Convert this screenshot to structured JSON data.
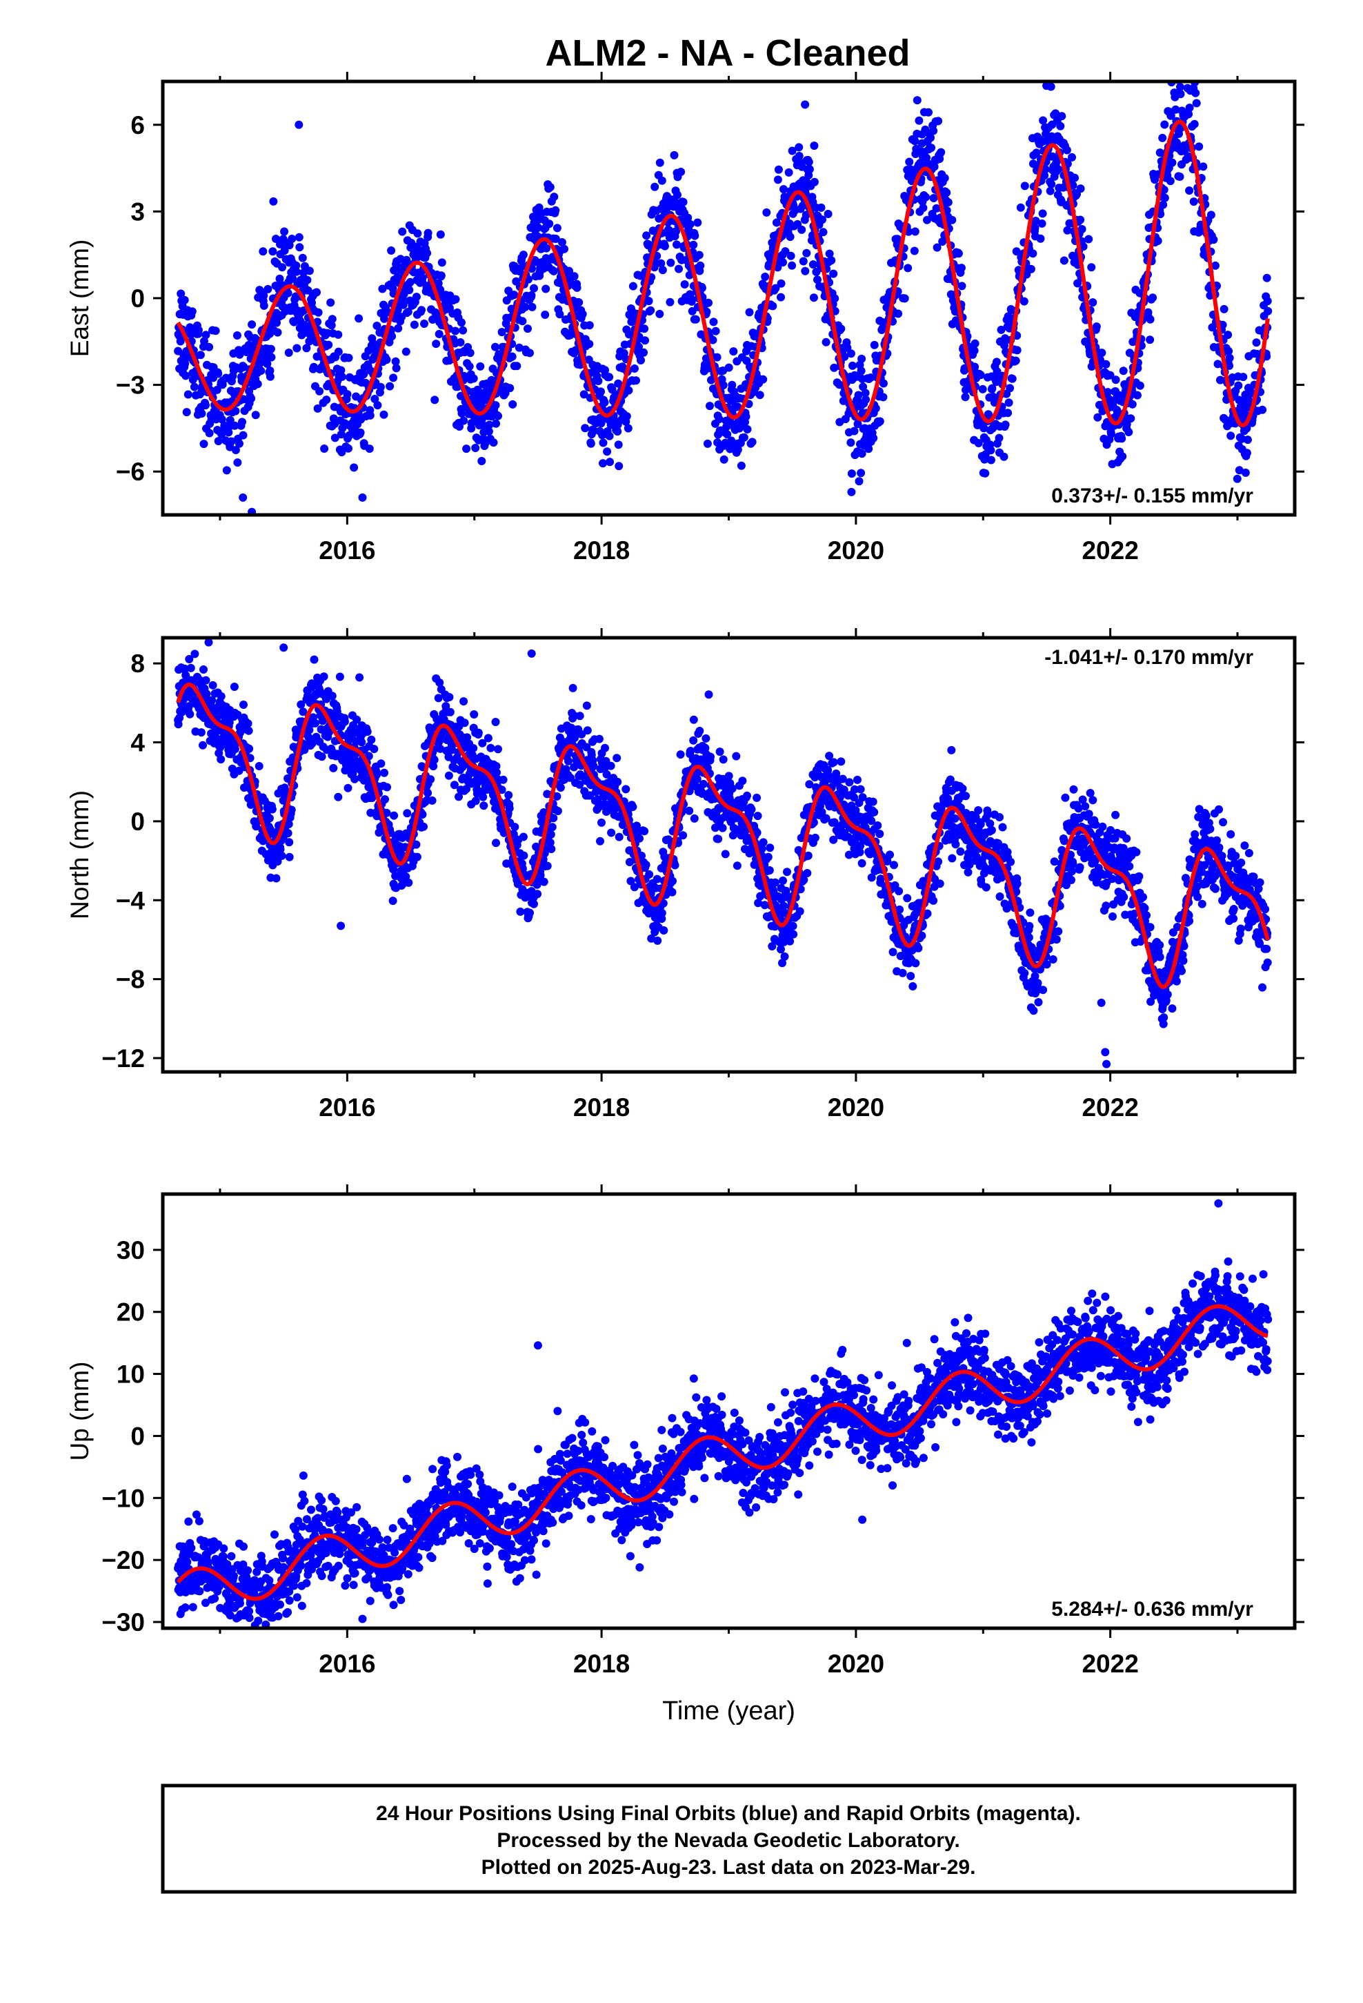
{
  "title": "ALM2  - NA - Cleaned",
  "footer": {
    "line1": "24 Hour Positions Using Final Orbits (blue) and Rapid Orbits (magenta).",
    "line2": "Processed by the Nevada Geodetic Laboratory.",
    "line3": "Plotted on 2025-Aug-23. Last data on 2023-Mar-29."
  },
  "colors": {
    "data": "#0000ff",
    "model": "#ff0000",
    "frame": "#000000"
  },
  "chart_data": [
    {
      "type": "scatter",
      "ylabel": "East (mm)",
      "rate_label": "0.373+/- 0.155 mm/yr",
      "rate_position": "bottom-right",
      "xlim": [
        2014.55,
        2023.45
      ],
      "ylim": [
        -7.5,
        7.5
      ],
      "xticks": [
        2016,
        2018,
        2020,
        2022
      ],
      "yticks": [
        -6,
        -3,
        0,
        3,
        6
      ],
      "ytick_labels": [
        "−6",
        "−3",
        "0",
        "3",
        "6"
      ],
      "time_range": [
        2014.67,
        2023.24
      ],
      "model": {
        "rate": 0.373,
        "offset": -0.45,
        "ref_year": 2019.0,
        "annual_cos": -3.55,
        "annual_sin": -0.95,
        "semi_cos": 0.0,
        "semi_sin": 0.0,
        "amp_growth": 0.12
      },
      "scatter_sd": 0.95,
      "outliers": [
        [
          2015.25,
          -7.4
        ],
        [
          2015.18,
          -6.9
        ],
        [
          2016.12,
          -6.9
        ],
        [
          2019.6,
          6.7
        ],
        [
          2022.67,
          7.1
        ],
        [
          2015.62,
          6.0
        ],
        [
          2019.1,
          -5.8
        ]
      ]
    },
    {
      "type": "scatter",
      "ylabel": "North (mm)",
      "rate_label": "-1.041+/- 0.170 mm/yr",
      "rate_position": "top-right",
      "xlim": [
        2014.55,
        2023.45
      ],
      "ylim": [
        -12.7,
        9.3
      ],
      "xticks": [
        2016,
        2018,
        2020,
        2022
      ],
      "yticks": [
        -12,
        -8,
        -4,
        0,
        4,
        8
      ],
      "ytick_labels": [
        "−12",
        "−8",
        "−4",
        "0",
        "4",
        "8"
      ],
      "time_range": [
        2014.67,
        2023.24
      ],
      "model": {
        "rate": -1.041,
        "offset": -0.6,
        "ref_year": 2019.0,
        "annual_cos": 2.2,
        "annual_sin": -2.2,
        "semi_cos": -0.9,
        "semi_sin": 0.9,
        "amp_growth": 0.0
      },
      "scatter_sd": 1.0,
      "outliers": [
        [
          2021.97,
          -12.3
        ],
        [
          2021.96,
          -11.7
        ],
        [
          2021.93,
          -9.2
        ],
        [
          2015.5,
          8.8
        ],
        [
          2017.45,
          8.5
        ],
        [
          2015.95,
          -5.3
        ]
      ]
    },
    {
      "type": "scatter",
      "ylabel": "Up (mm)",
      "xlabel": "Time (year)",
      "rate_label": "5.284+/- 0.636 mm/yr",
      "rate_position": "bottom-right",
      "xlim": [
        2014.55,
        2023.45
      ],
      "ylim": [
        -31,
        39
      ],
      "xticks": [
        2016,
        2018,
        2020,
        2022
      ],
      "yticks": [
        -30,
        -20,
        -10,
        0,
        10,
        20,
        30
      ],
      "ytick_labels": [
        "−30",
        "−20",
        "−10",
        "0",
        "10",
        "20",
        "30"
      ],
      "time_range": [
        2014.67,
        2023.24
      ],
      "model": {
        "rate": 5.284,
        "offset": -3.0,
        "ref_year": 2019.0,
        "annual_cos": 1.4,
        "annual_sin": -3.4,
        "semi_cos": 0.0,
        "semi_sin": 0.0,
        "amp_growth": 0.0
      },
      "scatter_sd": 3.2,
      "outliers": [
        [
          2017.5,
          14.6
        ],
        [
          2022.85,
          37.5
        ],
        [
          2016.12,
          -29.5
        ],
        [
          2015.3,
          -29.8
        ],
        [
          2020.05,
          -13.5
        ],
        [
          2018.3,
          -21.2
        ]
      ]
    }
  ]
}
